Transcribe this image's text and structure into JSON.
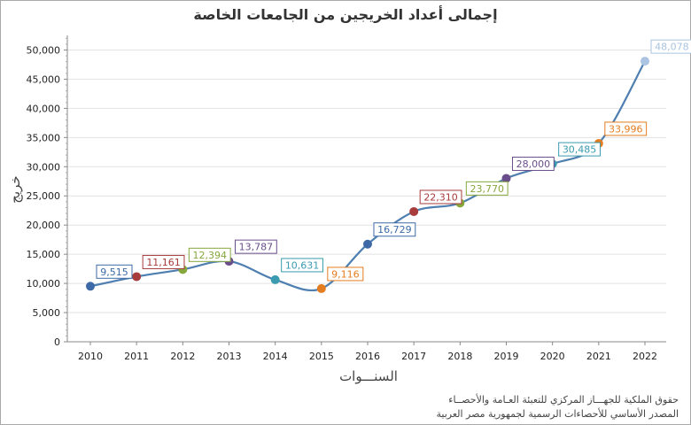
{
  "chart_data": {
    "type": "line",
    "title": "إجمالى أعداد الخريجين من الجامعات الخاصة",
    "xlabel": "السنـــوات",
    "ylabel": "خريج",
    "ylim": [
      0,
      52500
    ],
    "yticks": [
      0,
      5000,
      10000,
      15000,
      20000,
      25000,
      30000,
      35000,
      40000,
      45000,
      50000
    ],
    "ytick_labels": [
      "0",
      "5,000",
      "10,000",
      "15,000",
      "20,000",
      "25,000",
      "30,000",
      "35,000",
      "40,000",
      "45,000",
      "50,000"
    ],
    "categories": [
      "2010",
      "2011",
      "2012",
      "2013",
      "2014",
      "2015",
      "2016",
      "2017",
      "2018",
      "2019",
      "2020",
      "2021",
      "2022"
    ],
    "series": [
      {
        "name": "الخريجين",
        "values": [
          9515,
          11161,
          12394,
          13787,
          10631,
          9116,
          16729,
          22310,
          23770,
          28000,
          30485,
          33996,
          48078
        ],
        "labels": [
          "9,515",
          "11,161",
          "12,394",
          "13,787",
          "10,631",
          "9,116",
          "16,729",
          "22,310",
          "23,770",
          "28,000",
          "30,485",
          "33,996",
          "48,078"
        ],
        "line_color": "#4e7fb0",
        "point_colors": [
          "#3d6aa6",
          "#a83b3b",
          "#86a73c",
          "#6a4e8c",
          "#3a9bb0",
          "#e47c20",
          "#3d6aa6",
          "#a83b3b",
          "#86a73c",
          "#6a4e8c",
          "#3a9bb0",
          "#e47c20",
          "#aac4e2"
        ]
      }
    ],
    "grid": true,
    "legend": "none"
  },
  "footer": {
    "line1": "حقوق الملكية للجهـــاز المركزي للتعبئة العـامة والأحصــاء",
    "line2": "المصدر الأساسي للأحصاءات الرسمية لجمهورية مصر العربية"
  }
}
